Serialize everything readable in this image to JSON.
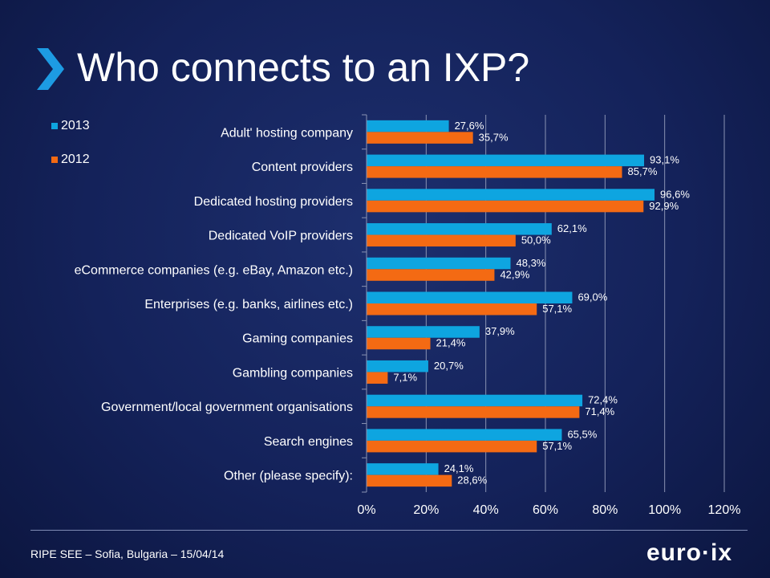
{
  "slide": {
    "title": "Who connects to an IXP?",
    "footer": "RIPE SEE – Sofia, Bulgaria – 15/04/14",
    "logo_text": "euro·ix",
    "chevron_icon": "chevron-right-icon"
  },
  "colors": {
    "series_2013": "#0ea5e0",
    "series_2012": "#f46a13",
    "chevron": "#1d9be3",
    "grid": "#8a93b3"
  },
  "chart_data": {
    "type": "bar",
    "orientation": "horizontal",
    "categories": [
      "Adult' hosting company",
      "Content providers",
      "Dedicated hosting providers",
      "Dedicated VoIP providers",
      "eCommerce companies (e.g. eBay, Amazon etc.)",
      "Enterprises (e.g. banks, airlines etc.)",
      "Gaming companies",
      "Gambling companies",
      "Government/local government organisations",
      "Search engines",
      "Other (please specify):"
    ],
    "series": [
      {
        "name": "2013",
        "values": [
          27.6,
          93.1,
          96.6,
          62.1,
          48.3,
          69.0,
          37.9,
          20.7,
          72.4,
          65.5,
          24.1
        ],
        "labels": [
          "27,6%",
          "93,1%",
          "96,6%",
          "62,1%",
          "48,3%",
          "69,0%",
          "37,9%",
          "20,7%",
          "72,4%",
          "65,5%",
          "24,1%"
        ]
      },
      {
        "name": "2012",
        "values": [
          35.7,
          85.7,
          92.9,
          50.0,
          42.9,
          57.1,
          21.4,
          7.1,
          71.4,
          57.1,
          28.6
        ],
        "labels": [
          "35,7%",
          "85,7%",
          "92,9%",
          "50,0%",
          "42,9%",
          "57,1%",
          "21,4%",
          "7,1%",
          "71,4%",
          "57,1%",
          "28,6%"
        ]
      }
    ],
    "xlim": [
      0,
      120
    ],
    "xticks": [
      0,
      20,
      40,
      60,
      80,
      100,
      120
    ],
    "xtick_labels": [
      "0%",
      "20%",
      "40%",
      "60%",
      "80%",
      "100%",
      "120%"
    ],
    "grid": true,
    "legend_position": "top-left"
  }
}
